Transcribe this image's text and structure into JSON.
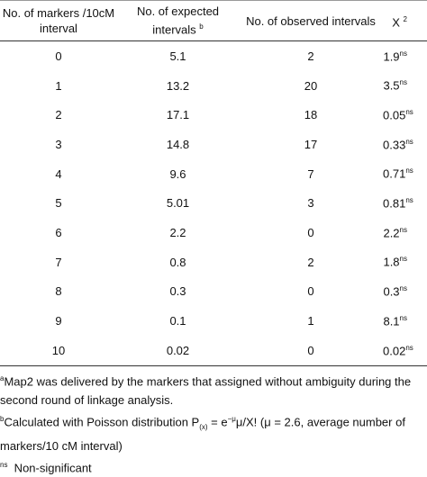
{
  "table": {
    "headers": [
      {
        "text": "No. of markers /10cM interval"
      },
      {
        "text": "No. of expected intervals",
        "sup": "b"
      },
      {
        "text": "No. of observed intervals"
      },
      {
        "text": "X",
        "sup": "2"
      }
    ],
    "rows": [
      {
        "markers": "0",
        "expected": "5.1",
        "observed": "2",
        "chi": "1.9",
        "chi_sup": "ns"
      },
      {
        "markers": "1",
        "expected": "13.2",
        "observed": "20",
        "chi": "3.5",
        "chi_sup": "ns"
      },
      {
        "markers": "2",
        "expected": "17.1",
        "observed": "18",
        "chi": "0.05",
        "chi_sup": "ns"
      },
      {
        "markers": "3",
        "expected": "14.8",
        "observed": "17",
        "chi": "0.33",
        "chi_sup": "ns"
      },
      {
        "markers": "4",
        "expected": "9.6",
        "observed": "7",
        "chi": "0.71",
        "chi_sup": "ns"
      },
      {
        "markers": "5",
        "expected": "5.01",
        "observed": "3",
        "chi": "0.81",
        "chi_sup": "ns"
      },
      {
        "markers": "6",
        "expected": "2.2",
        "observed": "0",
        "chi": "2.2",
        "chi_sup": "ns"
      },
      {
        "markers": "7",
        "expected": "0.8",
        "observed": "2",
        "chi": "1.8",
        "chi_sup": "ns"
      },
      {
        "markers": "8",
        "expected": "0.3",
        "observed": "0",
        "chi": "0.3",
        "chi_sup": "ns"
      },
      {
        "markers": "9",
        "expected": "0.1",
        "observed": "1",
        "chi": "8.1",
        "chi_sup": "ns"
      },
      {
        "markers": "10",
        "expected": "0.02",
        "observed": "0",
        "chi": "0.02",
        "chi_sup": "ns"
      }
    ]
  },
  "footnotes": [
    {
      "mark": "a",
      "parts": [
        "Map2 was delivered by the markers that assigned without ambiguity during the second round of linkage analysis."
      ]
    },
    {
      "mark": "b",
      "parts": [
        "Calculated with Poisson distribution P",
        {
          "sub": "(x)"
        },
        " = e",
        {
          "sup": "−μ"
        },
        "μ/X! (μ = 2.6, average number of markers/10 cM interval)"
      ]
    },
    {
      "mark": "ns",
      "parts": [
        "  Non-significant"
      ]
    }
  ]
}
